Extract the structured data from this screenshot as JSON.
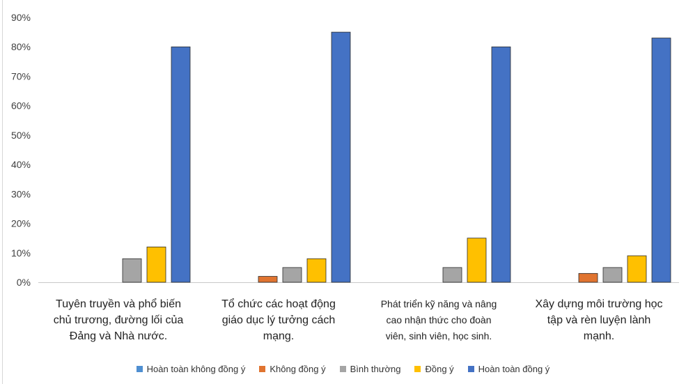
{
  "chart_data": {
    "type": "bar",
    "categories": [
      [
        "Tuyên truyền và phổ biến",
        "chủ trương, đường lối của",
        "Đảng và Nhà nước."
      ],
      [
        "Tổ chức các hoạt động",
        "giáo dục lý tưởng cách",
        "mạng."
      ],
      [
        "Phát triển kỹ năng và nâng",
        "cao nhận thức cho đoàn",
        "viên, sinh viên, học sinh."
      ],
      [
        "Xây dựng môi trường học",
        "tập và rèn luyện lành",
        "mạnh."
      ]
    ],
    "series": [
      {
        "name": "Hoàn toàn không đồng ý",
        "color": "#4f8fd1",
        "values": [
          0,
          0,
          0,
          0
        ]
      },
      {
        "name": "Không đồng ý",
        "color": "#e07430",
        "values": [
          0,
          2,
          0,
          3
        ]
      },
      {
        "name": "Bình thường",
        "color": "#a5a5a5",
        "values": [
          8,
          5,
          5,
          5
        ]
      },
      {
        "name": "Đồng ý",
        "color": "#ffc000",
        "values": [
          12,
          8,
          15,
          9
        ]
      },
      {
        "name": "Hoàn toàn đồng ý",
        "color": "#4472c4",
        "values": [
          80,
          85,
          80,
          83
        ]
      }
    ],
    "ylim": [
      0,
      90
    ],
    "yticks": [
      "0%",
      "10%",
      "20%",
      "30%",
      "40%",
      "50%",
      "60%",
      "70%",
      "80%",
      "90%"
    ],
    "grid": false,
    "legend_position": "bottom"
  }
}
